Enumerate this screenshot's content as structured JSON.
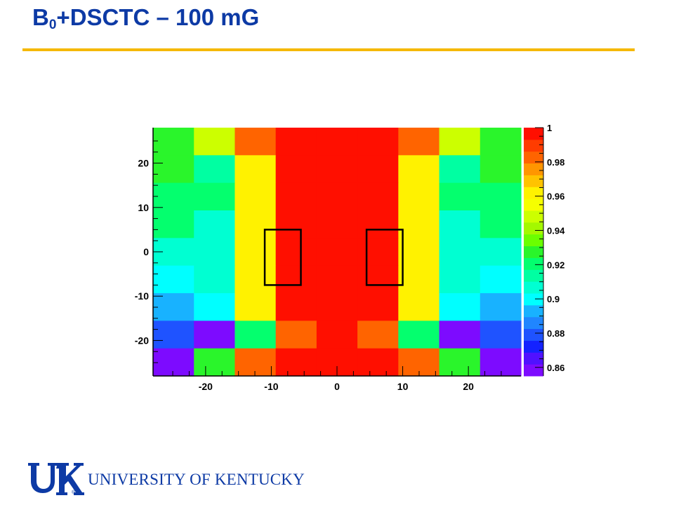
{
  "slide": {
    "title_main": "B",
    "title_sub": "0",
    "title_rest": "+DSCTC – 100 mG",
    "accent_color": "#f5b800",
    "title_color": "#0d3aa5"
  },
  "logo": {
    "mark": "UK",
    "text": "UNIVERSITY OF KENTUCKY"
  },
  "chart_data": {
    "type": "heatmap",
    "x_ticks": [
      -20,
      -10,
      0,
      10,
      20
    ],
    "y_ticks": [
      20,
      10,
      0,
      -10,
      -20
    ],
    "xlim": [
      -28,
      28
    ],
    "ylim": [
      -28,
      28
    ],
    "x_bins": 9,
    "y_bins": 9,
    "z_range": [
      0.855,
      1.0
    ],
    "colorbar_ticks": [
      "1",
      "0.98",
      "0.96",
      "0.94",
      "0.92",
      "0.9",
      "0.88",
      "0.86"
    ],
    "colorbar_tick_values": [
      1.0,
      0.98,
      0.96,
      0.94,
      0.92,
      0.9,
      0.88,
      0.86
    ],
    "z_rows_top_to_bottom": [
      [
        0.93,
        0.95,
        0.98,
        0.995,
        1.0,
        0.995,
        0.98,
        0.95,
        0.93
      ],
      [
        0.925,
        0.915,
        0.965,
        0.995,
        1.0,
        0.995,
        0.965,
        0.915,
        0.925
      ],
      [
        0.92,
        0.92,
        0.965,
        1.0,
        1.0,
        1.0,
        0.965,
        0.92,
        0.92
      ],
      [
        0.92,
        0.91,
        0.965,
        1.0,
        1.0,
        1.0,
        0.965,
        0.91,
        0.92
      ],
      [
        0.91,
        0.91,
        0.965,
        0.995,
        1.0,
        0.995,
        0.965,
        0.91,
        0.91
      ],
      [
        0.9,
        0.91,
        0.965,
        0.995,
        1.0,
        0.995,
        0.965,
        0.91,
        0.9
      ],
      [
        0.89,
        0.9,
        0.96,
        0.995,
        1.0,
        0.995,
        0.96,
        0.9,
        0.89
      ],
      [
        0.88,
        0.86,
        0.92,
        0.985,
        1.0,
        0.985,
        0.92,
        0.86,
        0.88
      ],
      [
        0.86,
        0.93,
        0.98,
        1.0,
        1.0,
        1.0,
        0.98,
        0.93,
        0.86
      ]
    ],
    "palette": [
      "#7d0bff",
      "#5011ff",
      "#1422ff",
      "#1f53ff",
      "#2086ff",
      "#18b2ff",
      "#00ffff",
      "#00ffd2",
      "#00ffa2",
      "#04ff6e",
      "#2af52b",
      "#6bff00",
      "#a4f800",
      "#ccff00",
      "#f6ff00",
      "#fff200",
      "#ffc300",
      "#ff9600",
      "#ff6400",
      "#ff3c00",
      "#ff0f00"
    ],
    "boxes": [
      {
        "x0": -11,
        "x1": -5.5,
        "y0": -7.5,
        "y1": 5
      },
      {
        "x0": 4.5,
        "x1": 10,
        "y0": -7.5,
        "y1": 5
      }
    ]
  }
}
